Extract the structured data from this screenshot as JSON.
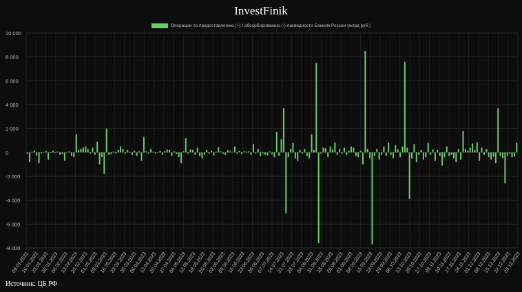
{
  "brand_title": "InvestFinik",
  "source": "Источник: ЦБ РФ",
  "chart_data": {
    "type": "bar",
    "title": "InvestFinik",
    "xlabel": "",
    "ylabel": "",
    "ylim": [
      -8000,
      10000
    ],
    "yticks": [
      10000,
      8000,
      6000,
      4000,
      2000,
      0,
      -2000,
      -4000,
      -6000,
      -8000
    ],
    "ytick_labels": [
      "10 000",
      "8 000",
      "6 000",
      "4 000",
      "2 000",
      "0",
      "-2 000",
      "-4 000",
      "-6 000",
      "-8 000"
    ],
    "grid": true,
    "legend_position": "top-center",
    "color": "#6cc86c",
    "series_name": "Операции по предоставлению (+) / абсорбированию (-) ликвидности Банком России (млрд руб.)",
    "x_start": "09.01.2023",
    "x_end": "28.12.2023",
    "xtick_labels": [
      "09.01.2023",
      "16.01.2023",
      "23.01.2023",
      "30.01.2023",
      "06.02.2023",
      "13.02.2023",
      "20.02.2023",
      "01.03.2023",
      "09.03.2023",
      "16.03.2023",
      "23.03.2023",
      "30.03.2023",
      "06.04.2023",
      "13.04.2023",
      "20.04.2023",
      "27.04.2023",
      "04.05.2023",
      "12.05.2023",
      "19.05.2023",
      "26.05.2023",
      "02.06.2023",
      "09.06.2023",
      "16.06.2023",
      "23.06.2023",
      "30.06.2023",
      "07.07.2023",
      "14.07.2023",
      "21.07.2023",
      "28.07.2023",
      "04.08.2023",
      "11.08.2023",
      "18.08.2023",
      "25.08.2023",
      "01.09.2023",
      "08.09.2023",
      "15.09.2023",
      "22.09.2023",
      "29.09.2023",
      "06.10.2023",
      "13.10.2023",
      "20.10.2023",
      "27.10.2023",
      "03.11.2023",
      "10.11.2023",
      "17.11.2023",
      "24.11.2023",
      "01.12.2023",
      "08.12.2023",
      "15.12.2023",
      "22.12.2023",
      "28.12.2023"
    ],
    "values": [
      -120,
      -800,
      50,
      150,
      -250,
      -900,
      -80,
      30,
      120,
      -600,
      20,
      150,
      -50,
      60,
      -200,
      -150,
      -700,
      40,
      80,
      -300,
      -400,
      1500,
      200,
      300,
      400,
      500,
      300,
      -100,
      400,
      -200,
      900,
      -1000,
      -400,
      -1800,
      2000,
      -200,
      -150,
      80,
      -100,
      200,
      500,
      300,
      -100,
      200,
      50,
      -200,
      150,
      -300,
      100,
      -700,
      1300,
      100,
      -100,
      300,
      50,
      -100,
      20,
      150,
      -200,
      100,
      250,
      200,
      -300,
      100,
      -150,
      -400,
      -900,
      100,
      1200,
      -100,
      250,
      200,
      -200,
      400,
      -300,
      -500,
      -200,
      200,
      -100,
      150,
      -250,
      60,
      450,
      100,
      -100,
      -200,
      200,
      100,
      50,
      500,
      -100,
      150,
      -150,
      100,
      80,
      100,
      -200,
      700,
      -100,
      300,
      -300,
      -100,
      -200,
      -250,
      80,
      -150,
      -400,
      1700,
      -300,
      1100,
      3700,
      -5100,
      -400,
      300,
      800,
      -500,
      -700,
      200,
      -100,
      300,
      -300,
      -500,
      1500,
      200,
      7500,
      -7600,
      -100,
      400,
      350,
      -400,
      500,
      250,
      850,
      -200,
      300,
      -100,
      400,
      -200,
      150,
      500,
      400,
      -300,
      -400,
      150,
      -1000,
      8500,
      300,
      -500,
      -7700,
      -300,
      300,
      -600,
      -200,
      500,
      -300,
      800,
      -200,
      -500,
      600,
      250,
      -400,
      500,
      7600,
      400,
      -3900,
      -500,
      700,
      -800,
      -200,
      200,
      -600,
      -400,
      800,
      -200,
      250,
      -700,
      200,
      -300,
      -1100,
      -400,
      500,
      -300,
      -200,
      -500,
      -800,
      300,
      -600,
      1800,
      300,
      150,
      400,
      750,
      200,
      850,
      -700,
      400,
      -200,
      300,
      -400,
      -600,
      -350,
      -900,
      3700,
      -300,
      -500,
      -2600,
      -300,
      -100,
      -400,
      -350,
      800
    ]
  }
}
